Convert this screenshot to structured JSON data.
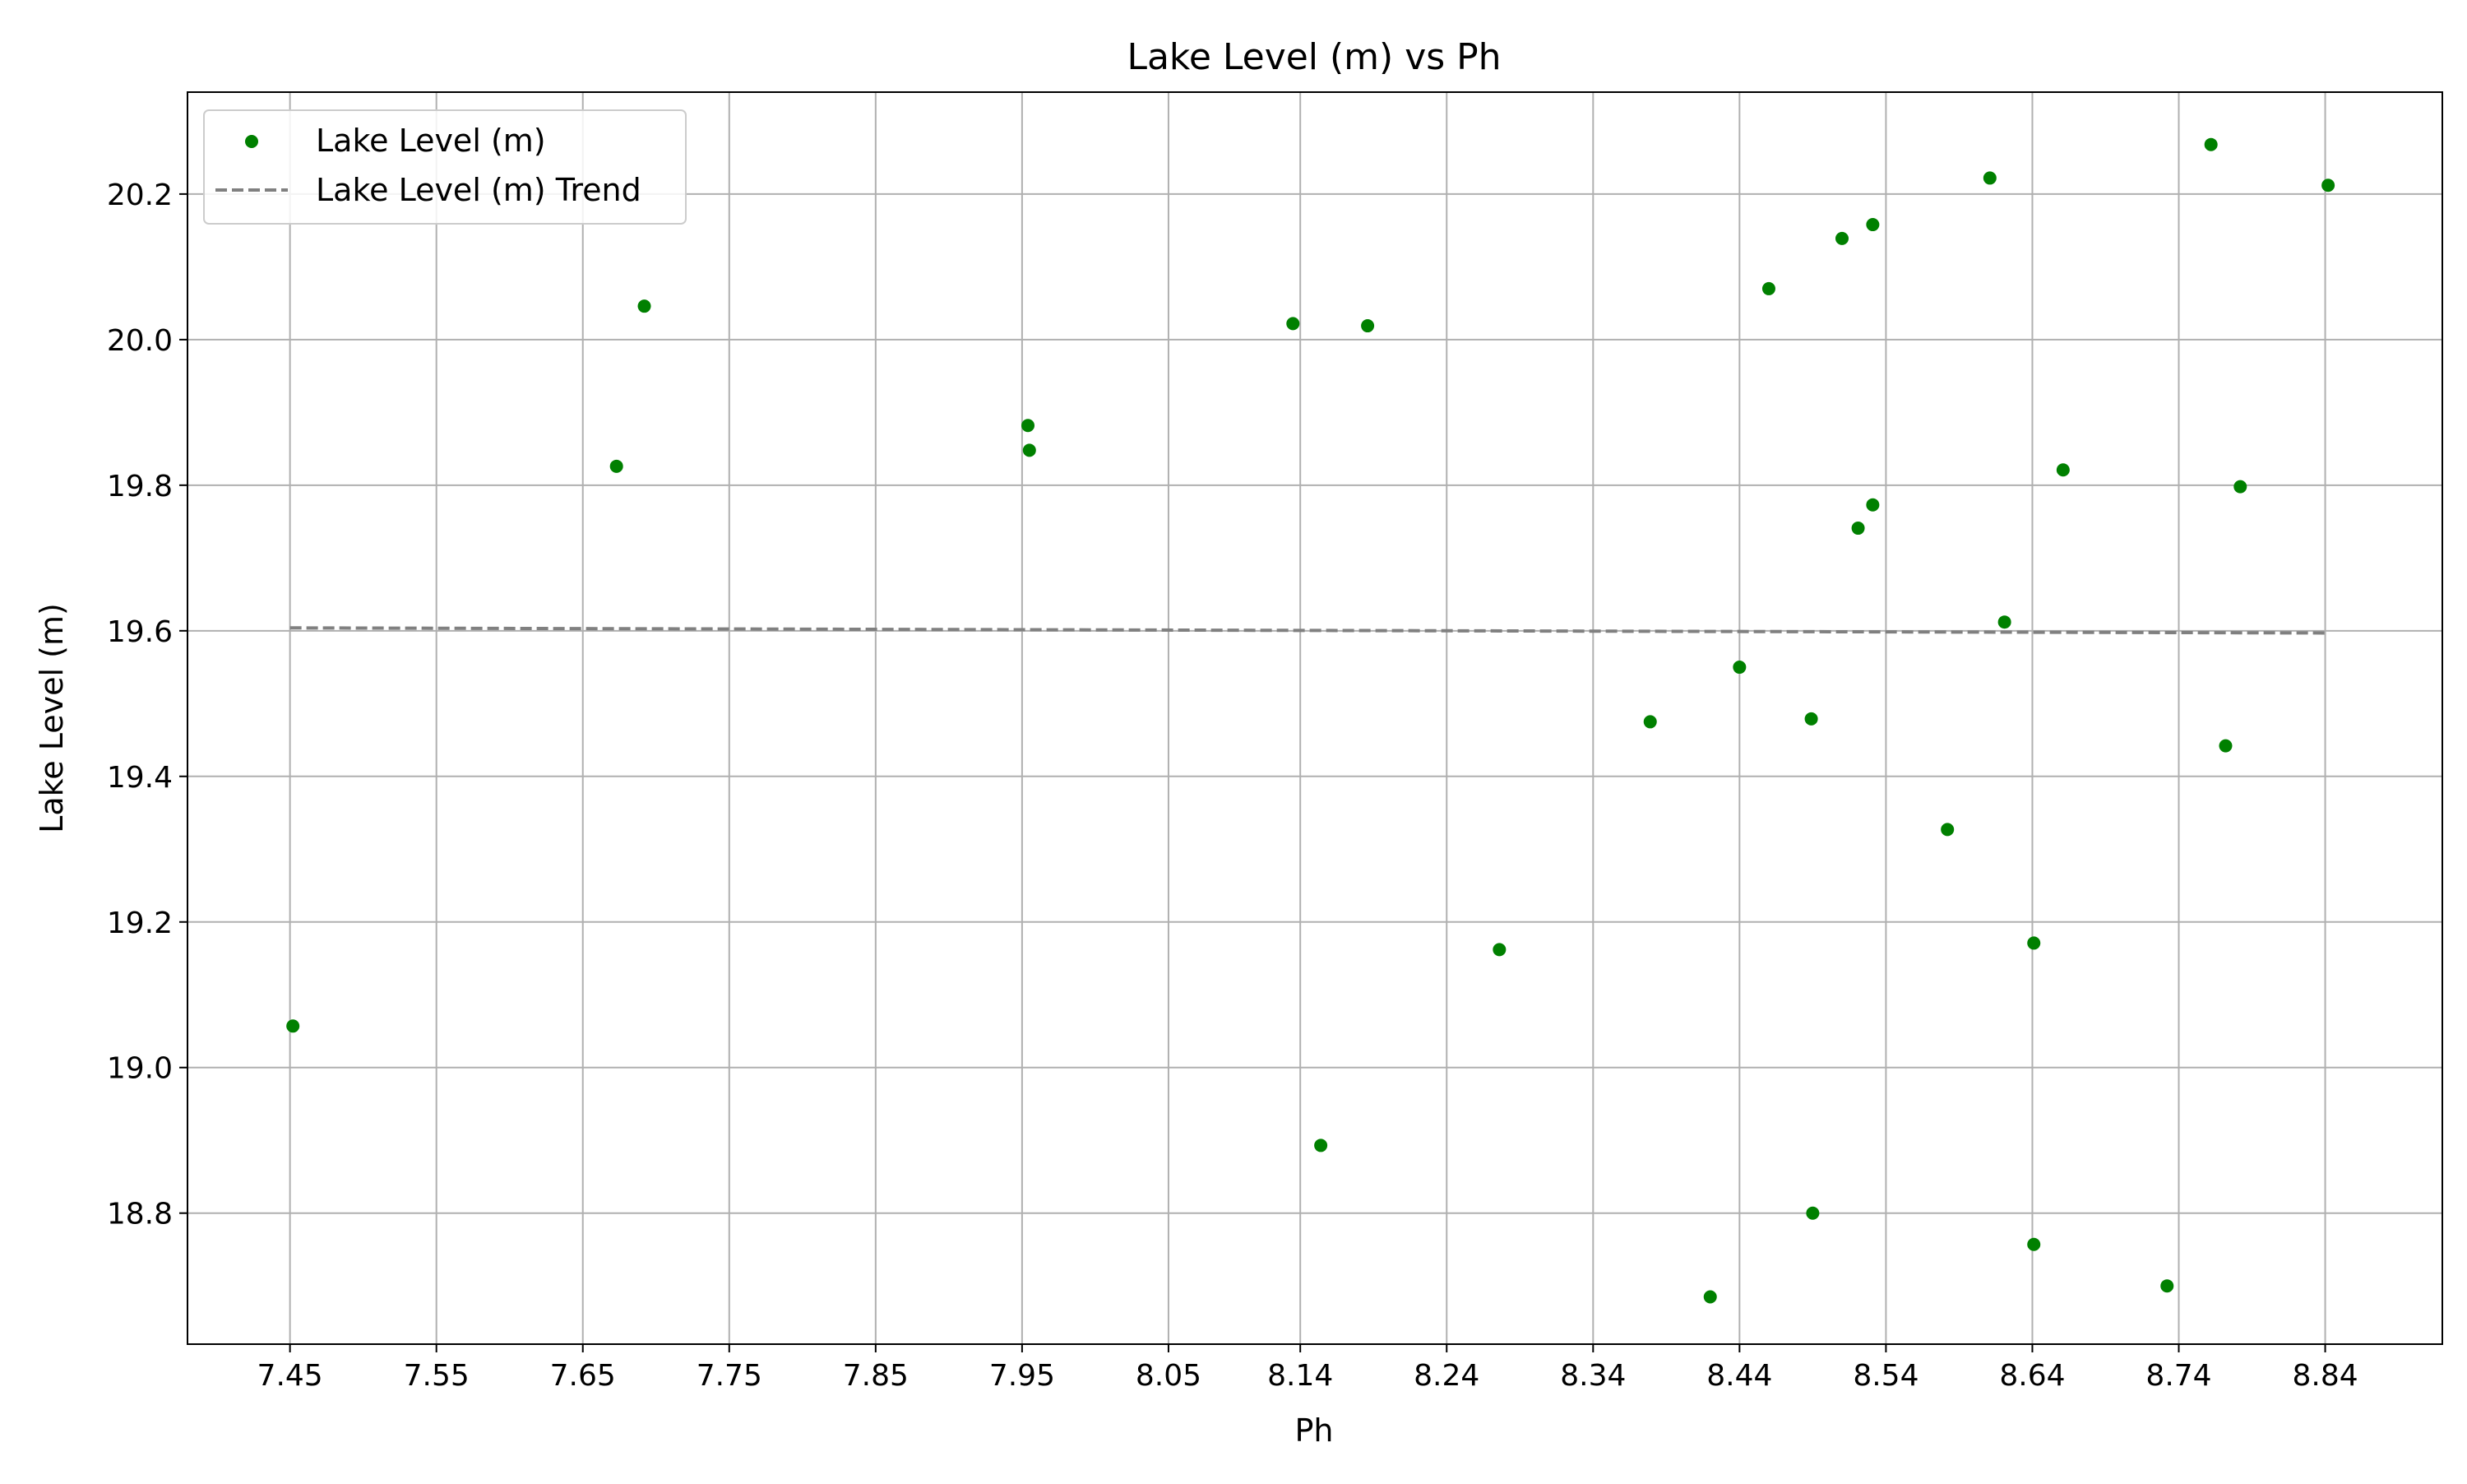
{
  "chart_data": {
    "type": "scatter",
    "title": "Lake Level (m) vs Ph",
    "xlabel": "Ph",
    "ylabel": "Lake Level (m)",
    "xlim": [
      7.38,
      8.92
    ],
    "ylim": [
      18.62,
      20.34
    ],
    "xticks": [
      7.45,
      7.55,
      7.65,
      7.75,
      7.85,
      7.95,
      8.05,
      8.14,
      8.24,
      8.34,
      8.44,
      8.54,
      8.64,
      8.74,
      8.84
    ],
    "xtick_labels": [
      "7.45",
      "7.55",
      "7.65",
      "7.75",
      "7.85",
      "7.95",
      "8.05",
      "8.14",
      "8.24",
      "8.34",
      "8.44",
      "8.54",
      "8.64",
      "8.74",
      "8.84"
    ],
    "yticks": [
      18.8,
      19.0,
      19.2,
      19.4,
      19.6,
      19.8,
      20.0,
      20.2
    ],
    "ytick_labels": [
      "18.8",
      "19.0",
      "19.2",
      "19.4",
      "19.6",
      "19.8",
      "20.0",
      "20.2"
    ],
    "grid": true,
    "legend_position": "top-left",
    "series": [
      {
        "name": "Lake Level (m)",
        "kind": "scatter",
        "color": "#008000",
        "points": [
          {
            "x": 7.452,
            "y": 19.057
          },
          {
            "x": 7.673,
            "y": 19.826
          },
          {
            "x": 7.692,
            "y": 20.046
          },
          {
            "x": 7.954,
            "y": 19.882
          },
          {
            "x": 7.955,
            "y": 19.848
          },
          {
            "x": 8.135,
            "y": 20.022
          },
          {
            "x": 8.154,
            "y": 18.893
          },
          {
            "x": 8.186,
            "y": 20.019
          },
          {
            "x": 8.276,
            "y": 19.162
          },
          {
            "x": 8.379,
            "y": 19.475
          },
          {
            "x": 8.42,
            "y": 18.685
          },
          {
            "x": 8.44,
            "y": 19.55
          },
          {
            "x": 8.46,
            "y": 20.07
          },
          {
            "x": 8.489,
            "y": 19.479
          },
          {
            "x": 8.49,
            "y": 18.8
          },
          {
            "x": 8.51,
            "y": 20.139
          },
          {
            "x": 8.521,
            "y": 19.741
          },
          {
            "x": 8.531,
            "y": 20.158
          },
          {
            "x": 8.531,
            "y": 19.773
          },
          {
            "x": 8.582,
            "y": 19.327
          },
          {
            "x": 8.611,
            "y": 20.222
          },
          {
            "x": 8.621,
            "y": 19.612
          },
          {
            "x": 8.641,
            "y": 19.171
          },
          {
            "x": 8.641,
            "y": 18.757
          },
          {
            "x": 8.661,
            "y": 19.821
          },
          {
            "x": 8.732,
            "y": 18.7
          },
          {
            "x": 8.762,
            "y": 20.268
          },
          {
            "x": 8.772,
            "y": 19.442
          },
          {
            "x": 8.782,
            "y": 19.798
          },
          {
            "x": 8.842,
            "y": 20.212
          }
        ]
      },
      {
        "name": "Lake Level (m) Trend",
        "kind": "line",
        "style": "dashed",
        "color": "#808080",
        "points": [
          {
            "x": 7.45,
            "y": 19.604
          },
          {
            "x": 8.842,
            "y": 19.597
          }
        ]
      }
    ]
  }
}
